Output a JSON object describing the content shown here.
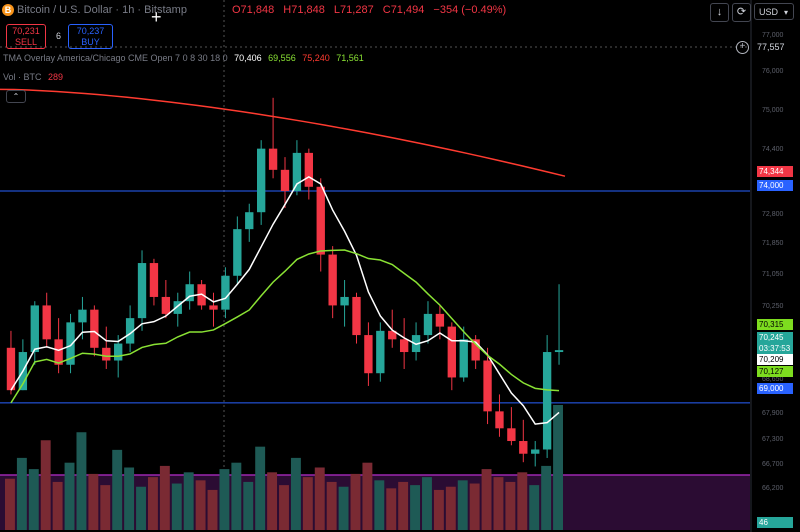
{
  "symbol": {
    "title": "Bitcoin / U.S. Dollar · 1h · Bitstamp",
    "logo": "B"
  },
  "ohlc": {
    "o": "O71,848",
    "h": "H71,848",
    "l": "L71,287",
    "c": "C71,494",
    "chg": "−354 (−0.49%)"
  },
  "trade": {
    "sell_price": "70,231",
    "sell_label": "SELL",
    "spread": "6",
    "buy_price": "70,237",
    "buy_label": "BUY"
  },
  "indicator": {
    "name": "TMA Overlay America/Chicago CME Open 7 0 8 30 18 0",
    "v1": "70,406",
    "v2": "69,556",
    "v3": "75,240",
    "v4": "71,561"
  },
  "volume": {
    "label": "Vol · BTC",
    "value": "289"
  },
  "toolbar": {
    "down_icon": "↓",
    "refresh_icon": "⟳",
    "currency": "USD"
  },
  "crosshair_price": "77,557",
  "axis_ticks": [
    "77,000",
    "76,000",
    "75,000",
    "74,400",
    "73,600",
    "72,800",
    "71,850",
    "71,050",
    "70,250",
    "69,450",
    "68,650",
    "67,900",
    "67,300",
    "66,700",
    "66,200"
  ],
  "price_labels": [
    {
      "text": "74,344",
      "bg": "#f23645",
      "fg": "#ffffff"
    },
    {
      "text": "74,000",
      "bg": "#2962ff",
      "fg": "#ffffff"
    },
    {
      "text": "70,315",
      "bg": "#7ddc1f",
      "fg": "#000000"
    },
    {
      "text": "70,245",
      "bg": "#26a69a",
      "fg": "#ffffff"
    },
    {
      "text": "03:37:53",
      "bg": "#26a69a",
      "fg": "#ffffff"
    },
    {
      "text": "70,209",
      "bg": "#ffffff",
      "fg": "#000000"
    },
    {
      "text": "70,127",
      "bg": "#7ddc1f",
      "fg": "#000000"
    },
    {
      "text": "69,000",
      "bg": "#2962ff",
      "fg": "#ffffff"
    },
    {
      "text": "46",
      "bg": "#26a69a",
      "fg": "#ffffff"
    }
  ],
  "colors": {
    "up": "#26a69a",
    "down": "#f23645",
    "red_line": "#ff3b30",
    "white_line": "#ffffff",
    "green_line": "#8ae234",
    "level": "#2962ff",
    "purple": "#9c27b0"
  },
  "chart_data": {
    "type": "candlestick",
    "ylim": [
      66000,
      77800
    ],
    "levels": [
      74000,
      69000,
      74344
    ],
    "candles": [
      [
        70300,
        70700,
        69200,
        69300
      ],
      [
        69300,
        70500,
        69300,
        70200
      ],
      [
        70200,
        71400,
        69900,
        71300
      ],
      [
        71300,
        71600,
        70300,
        70500
      ],
      [
        70500,
        71000,
        69700,
        69900
      ],
      [
        69900,
        71100,
        69700,
        70900
      ],
      [
        70900,
        71500,
        70500,
        71200
      ],
      [
        71200,
        71300,
        70100,
        70300
      ],
      [
        70300,
        70800,
        69800,
        70000
      ],
      [
        70000,
        70600,
        69600,
        70400
      ],
      [
        70400,
        71300,
        70200,
        71000
      ],
      [
        71000,
        72600,
        70700,
        72300
      ],
      [
        72300,
        72400,
        71300,
        71500
      ],
      [
        71500,
        71900,
        71000,
        71100
      ],
      [
        71100,
        71600,
        70800,
        71400
      ],
      [
        71400,
        72100,
        71200,
        71800
      ],
      [
        71800,
        71900,
        71200,
        71300
      ],
      [
        71300,
        71600,
        70800,
        71200
      ],
      [
        71200,
        72200,
        71000,
        72000
      ],
      [
        72000,
        73400,
        71800,
        73100
      ],
      [
        73100,
        73700,
        72800,
        73500
      ],
      [
        73500,
        75200,
        73200,
        75000
      ],
      [
        75000,
        76200,
        74300,
        74500
      ],
      [
        74500,
        74800,
        73600,
        74000
      ],
      [
        74000,
        75200,
        73900,
        74900
      ],
      [
        74900,
        75000,
        73800,
        74100
      ],
      [
        74100,
        74300,
        72100,
        72500
      ],
      [
        72500,
        72700,
        71000,
        71300
      ],
      [
        71300,
        71900,
        70800,
        71500
      ],
      [
        71500,
        71600,
        70400,
        70600
      ],
      [
        70600,
        70900,
        69400,
        69700
      ],
      [
        69700,
        70900,
        69500,
        70700
      ],
      [
        70700,
        71200,
        70300,
        70500
      ],
      [
        70500,
        71000,
        69800,
        70200
      ],
      [
        70200,
        70900,
        70000,
        70600
      ],
      [
        70600,
        71400,
        70400,
        71100
      ],
      [
        71100,
        71300,
        70500,
        70800
      ],
      [
        70800,
        70900,
        69300,
        69600
      ],
      [
        69600,
        70800,
        69500,
        70500
      ],
      [
        70500,
        70600,
        69800,
        70000
      ],
      [
        70000,
        70300,
        68500,
        68800
      ],
      [
        68800,
        69200,
        68200,
        68400
      ],
      [
        68400,
        68900,
        68000,
        68100
      ],
      [
        68100,
        68600,
        67600,
        67800
      ],
      [
        67800,
        68100,
        67500,
        67900
      ],
      [
        67900,
        70600,
        67700,
        70200
      ],
      [
        70200,
        71800,
        69900,
        70245
      ]
    ],
    "volumes": [
      320,
      450,
      380,
      560,
      300,
      420,
      610,
      350,
      280,
      500,
      390,
      270,
      330,
      400,
      290,
      360,
      310,
      250,
      380,
      420,
      300,
      520,
      360,
      280,
      450,
      330,
      390,
      300,
      270,
      350,
      420,
      310,
      260,
      300,
      280,
      330,
      250,
      270,
      310,
      290,
      380,
      330,
      300,
      360,
      280,
      400,
      780
    ]
  }
}
